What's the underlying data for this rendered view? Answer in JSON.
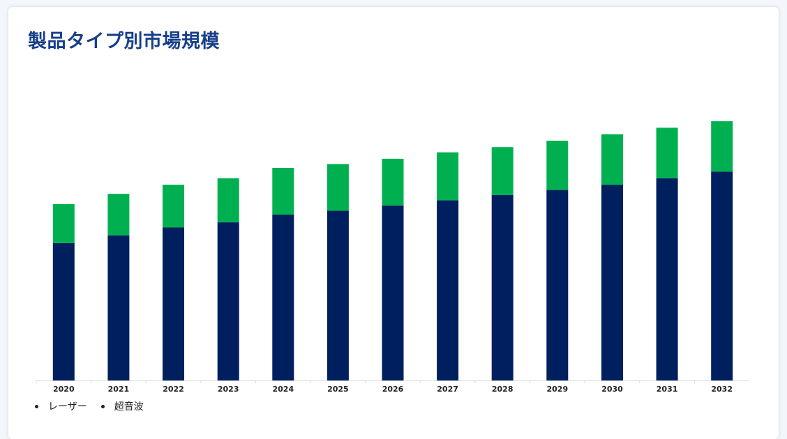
{
  "title": "製品タイプ別市場規模",
  "chart_data": {
    "type": "bar",
    "stacked": true,
    "categories": [
      "2020",
      "2021",
      "2022",
      "2023",
      "2024",
      "2025",
      "2026",
      "2027",
      "2028",
      "2029",
      "2030",
      "2031",
      "2032"
    ],
    "series": [
      {
        "name": "レーザー",
        "color": "#001f5f",
        "values": [
          53,
          56,
          59,
          61,
          64,
          65.5,
          67.5,
          69.5,
          71.5,
          73.5,
          75.5,
          78,
          80.5
        ]
      },
      {
        "name": "超音波",
        "color": "#00b050",
        "values": [
          15,
          16,
          16.5,
          17,
          18,
          18,
          18,
          18.5,
          18.5,
          19,
          19.5,
          19.5,
          19.5
        ]
      }
    ],
    "ylim": [
      0,
      100
    ],
    "grid": false,
    "legend_position": "bottom-left"
  }
}
